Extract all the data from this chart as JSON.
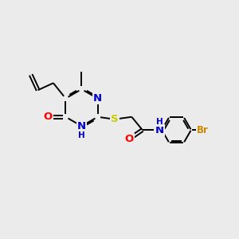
{
  "bg_color": "#ebebeb",
  "bond_color": "#000000",
  "atom_colors": {
    "N": "#0000cc",
    "O": "#ff0000",
    "S": "#cccc00",
    "Br": "#cc8800",
    "C": "#000000"
  },
  "font_size": 8.5,
  "bond_width": 1.4,
  "figsize": [
    3.0,
    3.0
  ],
  "dpi": 100
}
